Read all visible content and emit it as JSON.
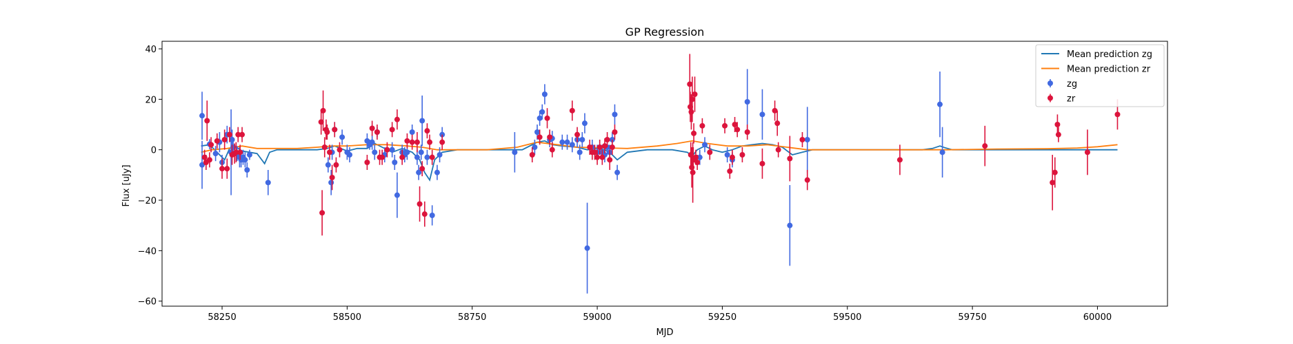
{
  "chart_data": {
    "type": "scatter",
    "title": "GP Regression",
    "xlabel": "MJD",
    "ylabel": "Flux [uJy]",
    "xlim": [
      58130,
      60140
    ],
    "ylim": [
      -62,
      43
    ],
    "xticks": [
      58250,
      58500,
      58750,
      59000,
      59250,
      59500,
      59750,
      60000
    ],
    "yticks": [
      -60,
      -40,
      -20,
      0,
      20,
      40
    ],
    "grid": false,
    "legend_position": "top-right",
    "legend": [
      {
        "label": "Mean prediction zg",
        "kind": "line",
        "color": "#1f77b4"
      },
      {
        "label": "Mean prediction zr",
        "kind": "line",
        "color": "#ff7f0e"
      },
      {
        "label": "zg",
        "kind": "errorbar",
        "color": "#4169e1"
      },
      {
        "label": "zr",
        "kind": "errorbar",
        "color": "#dc143c"
      }
    ],
    "lines": [
      {
        "name": "Mean prediction zg",
        "color": "#1f77b4",
        "x": [
          58208,
          58225,
          58245,
          58255,
          58265,
          58275,
          58290,
          58305,
          58320,
          58335,
          58345,
          58360,
          58400,
          58440,
          58460,
          58475,
          58500,
          58520,
          58540,
          58555,
          58570,
          58590,
          58610,
          58630,
          58645,
          58655,
          58665,
          58675,
          58690,
          58720,
          58800,
          58850,
          58880,
          58895,
          58910,
          58930,
          58960,
          58980,
          59000,
          59015,
          59030,
          59040,
          59060,
          59100,
          59150,
          59180,
          59190,
          59200,
          59215,
          59230,
          59250,
          59270,
          59290,
          59310,
          59330,
          59350,
          59370,
          59390,
          59410,
          59430,
          59500,
          59600,
          59650,
          59670,
          59685,
          59695,
          59710,
          59800,
          59900,
          60000,
          60040
        ],
        "y": [
          1.5,
          2,
          -2,
          -4,
          0.5,
          1.5,
          -0.5,
          -1,
          -1.5,
          -5.5,
          -1,
          0,
          0,
          0,
          0.5,
          1.5,
          -0.5,
          0.5,
          0.5,
          2.5,
          1,
          -1,
          0.5,
          -1,
          -4,
          -9,
          -12,
          -4,
          -1,
          0,
          0,
          0,
          3,
          3.5,
          2,
          1.5,
          1,
          0,
          0.5,
          0,
          -2,
          -4,
          -1,
          0,
          0,
          -1,
          -2.5,
          0,
          1.5,
          0,
          -1,
          0,
          1.5,
          2,
          2.5,
          2,
          1,
          -2,
          -1,
          0,
          0,
          0,
          0,
          0.5,
          1.5,
          0.8,
          0,
          0,
          0,
          0,
          0
        ]
      },
      {
        "name": "Mean prediction zr",
        "color": "#ff7f0e",
        "x": [
          58208,
          58230,
          58260,
          58290,
          58320,
          58360,
          58400,
          58440,
          58470,
          58500,
          58540,
          58580,
          58620,
          58650,
          58680,
          58720,
          58780,
          58840,
          58880,
          58920,
          58960,
          59000,
          59060,
          59120,
          59160,
          59190,
          59220,
          59260,
          59300,
          59340,
          59380,
          59420,
          59460,
          59500,
          59560,
          59620,
          59700,
          59800,
          59900,
          59960,
          60000,
          60040
        ],
        "y": [
          -1,
          0,
          0.5,
          1.5,
          0.5,
          0.5,
          0.5,
          1,
          1.5,
          1.5,
          2,
          2,
          1.5,
          1,
          0,
          0,
          0,
          1,
          3,
          2,
          1,
          0.8,
          0.5,
          1.5,
          2.5,
          3.5,
          2.5,
          1.5,
          1.5,
          2,
          1,
          0,
          0,
          0,
          0,
          0,
          0,
          0.3,
          0.4,
          0.7,
          1.2,
          2
        ]
      }
    ],
    "series": [
      {
        "name": "zg",
        "color": "#4169e1",
        "points": [
          [
            58210,
            13.5,
            9.5
          ],
          [
            58210,
            -6,
            9.5
          ],
          [
            58225,
            2.2,
            2
          ],
          [
            58237,
            -1.5,
            3
          ],
          [
            58245,
            3,
            4
          ],
          [
            58250,
            -5,
            3
          ],
          [
            58260,
            6,
            3.5
          ],
          [
            58268,
            -1,
            17
          ],
          [
            58270,
            4,
            4
          ],
          [
            58272,
            1,
            3
          ],
          [
            58280,
            -1.5,
            3
          ],
          [
            58285,
            -3,
            4
          ],
          [
            58288,
            -4,
            3
          ],
          [
            58292,
            -3,
            3
          ],
          [
            58296,
            -4,
            3
          ],
          [
            58300,
            -8,
            3
          ],
          [
            58305,
            -2,
            2
          ],
          [
            58342,
            -13,
            5
          ],
          [
            58462,
            -6,
            3
          ],
          [
            58468,
            -13,
            5
          ],
          [
            58470,
            -1,
            3
          ],
          [
            58475,
            8,
            3
          ],
          [
            58490,
            5,
            3
          ],
          [
            58500,
            -1,
            3
          ],
          [
            58505,
            -2,
            3
          ],
          [
            58540,
            3.5,
            3
          ],
          [
            58545,
            2,
            2
          ],
          [
            58550,
            3,
            3
          ],
          [
            58555,
            -1,
            3
          ],
          [
            58560,
            7,
            2
          ],
          [
            58575,
            -2,
            3
          ],
          [
            58590,
            0,
            3
          ],
          [
            58595,
            -5,
            3
          ],
          [
            58600,
            -18,
            9
          ],
          [
            58610,
            -1,
            3
          ],
          [
            58615,
            -2,
            3
          ],
          [
            58620,
            -1,
            3
          ],
          [
            58630,
            7,
            3
          ],
          [
            58640,
            -3,
            3
          ],
          [
            58643,
            -9,
            3
          ],
          [
            58648,
            -1,
            3
          ],
          [
            58650,
            11.5,
            10
          ],
          [
            58660,
            -3,
            3
          ],
          [
            58670,
            -26,
            4
          ],
          [
            58680,
            -9,
            3
          ],
          [
            58685,
            -2,
            3
          ],
          [
            58690,
            6,
            3
          ],
          [
            58835,
            -1,
            8
          ],
          [
            58875,
            1,
            3
          ],
          [
            58880,
            7,
            3
          ],
          [
            58885,
            12.5,
            3
          ],
          [
            58890,
            15,
            3
          ],
          [
            58895,
            22,
            4
          ],
          [
            58905,
            4,
            3
          ],
          [
            58910,
            4.5,
            3
          ],
          [
            58930,
            3,
            3
          ],
          [
            58940,
            3,
            3
          ],
          [
            58950,
            2,
            3
          ],
          [
            58960,
            4,
            3
          ],
          [
            58965,
            -1,
            3
          ],
          [
            58970,
            4,
            3
          ],
          [
            58975,
            10.5,
            4
          ],
          [
            58980,
            -39,
            18
          ],
          [
            58990,
            1,
            3
          ],
          [
            59000,
            -1,
            3
          ],
          [
            59005,
            1,
            3
          ],
          [
            59010,
            -1,
            3
          ],
          [
            59015,
            -2,
            3
          ],
          [
            59020,
            1,
            3
          ],
          [
            59025,
            -1,
            3
          ],
          [
            59030,
            4,
            3
          ],
          [
            59035,
            14,
            4
          ],
          [
            59040,
            -9,
            3
          ],
          [
            59205,
            -3,
            3
          ],
          [
            59215,
            2,
            3
          ],
          [
            59260,
            -2,
            3
          ],
          [
            59270,
            -4,
            3
          ],
          [
            59300,
            19,
            13
          ],
          [
            59330,
            14,
            10
          ],
          [
            59385,
            -30,
            16
          ],
          [
            59420,
            4,
            13
          ],
          [
            59685,
            18,
            13
          ],
          [
            59690,
            -1,
            10
          ]
        ]
      },
      {
        "name": "zr",
        "color": "#dc143c",
        "points": [
          [
            58215,
            -3,
            3
          ],
          [
            58218,
            -5,
            3
          ],
          [
            58220,
            11.5,
            8
          ],
          [
            58225,
            -4,
            3
          ],
          [
            58228,
            2,
            3
          ],
          [
            58240,
            3.5,
            3
          ],
          [
            58250,
            -7.5,
            4
          ],
          [
            58255,
            4,
            4
          ],
          [
            58260,
            -7.5,
            4
          ],
          [
            58265,
            6,
            3
          ],
          [
            58270,
            -2,
            4
          ],
          [
            58275,
            -1.5,
            4
          ],
          [
            58278,
            -1,
            4
          ],
          [
            58282,
            6,
            3
          ],
          [
            58286,
            -1,
            3
          ],
          [
            58290,
            6,
            3
          ],
          [
            58448,
            11,
            5
          ],
          [
            58450,
            -25,
            9
          ],
          [
            58452,
            15.5,
            8
          ],
          [
            58455,
            1,
            4
          ],
          [
            58458,
            8,
            4
          ],
          [
            58460,
            7,
            3
          ],
          [
            58465,
            -1,
            3
          ],
          [
            58470,
            -11,
            5
          ],
          [
            58475,
            8,
            3
          ],
          [
            58478,
            -6,
            3
          ],
          [
            58485,
            0,
            3
          ],
          [
            58540,
            -5,
            3
          ],
          [
            58550,
            8.5,
            3
          ],
          [
            58560,
            7,
            3
          ],
          [
            58565,
            -3,
            3
          ],
          [
            58570,
            -3,
            3
          ],
          [
            58580,
            0,
            3
          ],
          [
            58590,
            8,
            3
          ],
          [
            58600,
            12,
            4
          ],
          [
            58610,
            -3,
            3
          ],
          [
            58620,
            3.5,
            3
          ],
          [
            58630,
            3,
            3
          ],
          [
            58640,
            3,
            4
          ],
          [
            58645,
            -21.5,
            7
          ],
          [
            58650,
            -7.5,
            3
          ],
          [
            58655,
            -25.5,
            5
          ],
          [
            58660,
            7.5,
            3
          ],
          [
            58665,
            3,
            3
          ],
          [
            58670,
            -3,
            3
          ],
          [
            58690,
            3,
            3
          ],
          [
            58870,
            -2,
            3
          ],
          [
            58885,
            5,
            3
          ],
          [
            58900,
            12.5,
            4
          ],
          [
            58905,
            5,
            3
          ],
          [
            58910,
            0,
            3
          ],
          [
            58950,
            15.5,
            4
          ],
          [
            58960,
            6,
            3
          ],
          [
            58985,
            1,
            3
          ],
          [
            58990,
            -1,
            3
          ],
          [
            58995,
            -1,
            3
          ],
          [
            59000,
            -3,
            3
          ],
          [
            59005,
            1,
            3
          ],
          [
            59010,
            -3,
            3
          ],
          [
            59015,
            1.5,
            3
          ],
          [
            59020,
            4,
            3
          ],
          [
            59025,
            -4,
            4
          ],
          [
            59030,
            1,
            3
          ],
          [
            59035,
            7,
            3
          ],
          [
            59185,
            26,
            12
          ],
          [
            59186,
            17,
            6
          ],
          [
            59187,
            -2,
            5
          ],
          [
            59188,
            15,
            7
          ],
          [
            59189,
            -7,
            8
          ],
          [
            59190,
            20,
            9
          ],
          [
            59191,
            -9,
            12
          ],
          [
            59192,
            -4,
            5
          ],
          [
            59193,
            6.5,
            4
          ],
          [
            59195,
            22,
            7
          ],
          [
            59197,
            -3,
            3
          ],
          [
            59200,
            -5,
            3
          ],
          [
            59210,
            9.5,
            3
          ],
          [
            59225,
            -1,
            3
          ],
          [
            59255,
            9.5,
            3
          ],
          [
            59265,
            -8.5,
            3
          ],
          [
            59270,
            -3,
            3
          ],
          [
            59275,
            10,
            3
          ],
          [
            59280,
            8,
            3
          ],
          [
            59290,
            -2,
            3
          ],
          [
            59300,
            7,
            3
          ],
          [
            59330,
            -5.5,
            6
          ],
          [
            59355,
            15.5,
            4
          ],
          [
            59360,
            10.5,
            5
          ],
          [
            59362,
            0,
            3
          ],
          [
            59385,
            -3.5,
            9
          ],
          [
            59410,
            4,
            3
          ],
          [
            59420,
            -12,
            4
          ],
          [
            59605,
            -4,
            6
          ],
          [
            59775,
            1.5,
            8
          ],
          [
            59910,
            -13,
            11
          ],
          [
            59915,
            -9,
            6
          ],
          [
            59920,
            10,
            4
          ],
          [
            59922,
            6,
            3
          ],
          [
            59980,
            -1,
            9
          ],
          [
            60040,
            14,
            6
          ]
        ]
      }
    ]
  }
}
